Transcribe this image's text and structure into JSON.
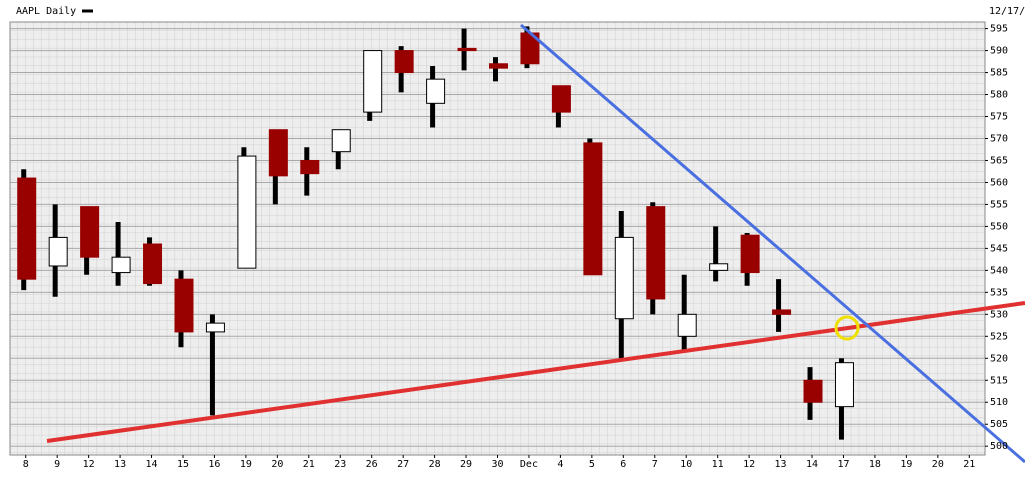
{
  "chart_data": {
    "type": "candlestick",
    "title": "AAPL Daily",
    "corner_label": "12/17/",
    "categories": [
      "8",
      "9",
      "12",
      "13",
      "14",
      "15",
      "16",
      "19",
      "20",
      "21",
      "23",
      "26",
      "27",
      "28",
      "29",
      "30",
      "Dec",
      "4",
      "5",
      "6",
      "7",
      "10",
      "11",
      "12",
      "13",
      "14",
      "17",
      "18",
      "19",
      "20",
      "21"
    ],
    "open": [
      561,
      541,
      554.5,
      539.5,
      546,
      538,
      526,
      540.5,
      572,
      565,
      567,
      576,
      590,
      578,
      590.5,
      587,
      594,
      582,
      569,
      529,
      554.5,
      525,
      540,
      548,
      531,
      515,
      509,
      null,
      null,
      null,
      null
    ],
    "high": [
      563,
      555,
      554.5,
      551,
      547.5,
      540,
      530,
      568,
      572,
      568,
      572,
      590,
      591,
      586.5,
      595,
      588.5,
      595.5,
      582,
      570,
      553.5,
      555.5,
      539,
      550,
      548.5,
      538,
      518,
      520,
      null,
      null,
      null,
      null
    ],
    "low": [
      535.5,
      534,
      539,
      536.5,
      536.5,
      522.5,
      507,
      540.5,
      555,
      557,
      563,
      574,
      580.5,
      572.5,
      585.5,
      583,
      586,
      572.5,
      539,
      520,
      530,
      522,
      537.5,
      536.5,
      526,
      506,
      501.5,
      null,
      null,
      null,
      null
    ],
    "close": [
      538,
      547.5,
      543,
      543,
      537,
      526,
      528,
      566,
      561.5,
      562,
      572,
      590,
      585,
      583.5,
      590,
      586,
      587,
      576,
      539,
      547.5,
      533.5,
      530,
      541.5,
      539.5,
      530,
      510,
      519,
      null,
      null,
      null,
      null
    ],
    "up_color": "#ffffff",
    "down_color": "#990000",
    "ylim": [
      498,
      596.5
    ],
    "yticks": [
      500,
      505,
      510,
      515,
      520,
      525,
      530,
      535,
      540,
      545,
      550,
      555,
      560,
      565,
      570,
      575,
      580,
      585,
      590,
      595
    ],
    "grid": true
  }
}
